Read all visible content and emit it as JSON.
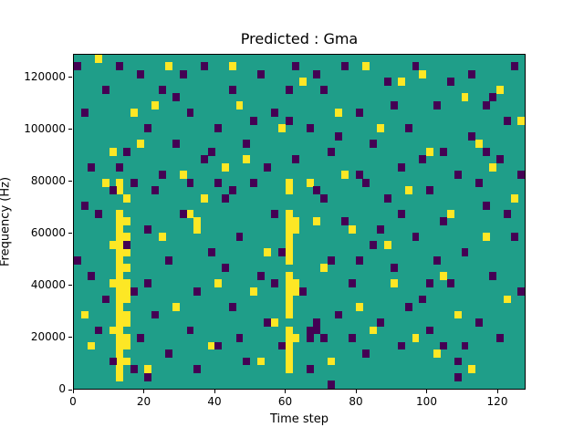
{
  "title": "Predicted : Gma",
  "chart_data": {
    "type": "heatmap",
    "title": "Predicted : Gma",
    "xlabel": "Time step",
    "ylabel": "Frequency (Hz)",
    "xlim": [
      0,
      128
    ],
    "ylim": [
      0,
      129000
    ],
    "x_ticks": [
      0,
      20,
      40,
      60,
      80,
      100,
      120
    ],
    "y_ticks": [
      0,
      20000,
      40000,
      60000,
      80000,
      100000,
      120000
    ],
    "grid": false,
    "legend": "none",
    "colors": {
      "background": "#1f9e89",
      "high": "#fde725",
      "low": "#440154"
    },
    "grid_dims": {
      "cols": 64,
      "rows": 43
    },
    "cell_size": {
      "time": 2,
      "freq": 3000
    },
    "cells": {
      "yellow": [
        [
          6,
          1
        ],
        [
          6,
          2
        ],
        [
          6,
          3
        ],
        [
          6,
          4
        ],
        [
          6,
          5
        ],
        [
          6,
          6
        ],
        [
          6,
          7
        ],
        [
          6,
          8
        ],
        [
          6,
          9
        ],
        [
          6,
          10
        ],
        [
          6,
          11
        ],
        [
          6,
          12
        ],
        [
          6,
          13
        ],
        [
          6,
          14
        ],
        [
          6,
          15
        ],
        [
          6,
          16
        ],
        [
          6,
          17
        ],
        [
          6,
          18
        ],
        [
          6,
          19
        ],
        [
          6,
          20
        ],
        [
          6,
          21
        ],
        [
          6,
          22
        ],
        [
          6,
          25
        ],
        [
          6,
          26
        ],
        [
          7,
          3
        ],
        [
          7,
          5
        ],
        [
          7,
          6
        ],
        [
          7,
          8
        ],
        [
          7,
          9
        ],
        [
          7,
          11
        ],
        [
          7,
          12
        ],
        [
          7,
          13
        ],
        [
          7,
          15
        ],
        [
          7,
          17
        ],
        [
          7,
          19
        ],
        [
          7,
          21
        ],
        [
          7,
          24
        ],
        [
          5,
          7
        ],
        [
          5,
          13
        ],
        [
          5,
          18
        ],
        [
          30,
          2
        ],
        [
          30,
          3
        ],
        [
          30,
          4
        ],
        [
          30,
          5
        ],
        [
          30,
          6
        ],
        [
          30,
          7
        ],
        [
          30,
          9
        ],
        [
          30,
          10
        ],
        [
          30,
          11
        ],
        [
          30,
          12
        ],
        [
          30,
          13
        ],
        [
          30,
          14
        ],
        [
          30,
          16
        ],
        [
          30,
          17
        ],
        [
          30,
          18
        ],
        [
          30,
          19
        ],
        [
          30,
          20
        ],
        [
          30,
          21
        ],
        [
          30,
          22
        ],
        [
          30,
          25
        ],
        [
          30,
          26
        ],
        [
          31,
          6
        ],
        [
          31,
          12
        ],
        [
          31,
          13
        ],
        [
          31,
          20
        ],
        [
          31,
          21
        ],
        [
          1,
          9
        ],
        [
          2,
          5
        ],
        [
          3,
          42
        ],
        [
          4,
          26
        ],
        [
          5,
          30
        ],
        [
          8,
          35
        ],
        [
          9,
          31
        ],
        [
          10,
          2
        ],
        [
          11,
          36
        ],
        [
          12,
          19
        ],
        [
          13,
          41
        ],
        [
          14,
          10
        ],
        [
          15,
          27
        ],
        [
          16,
          22
        ],
        [
          17,
          20
        ],
        [
          17,
          21
        ],
        [
          18,
          24
        ],
        [
          19,
          5
        ],
        [
          20,
          13
        ],
        [
          21,
          28
        ],
        [
          22,
          41
        ],
        [
          23,
          36
        ],
        [
          24,
          29
        ],
        [
          25,
          12
        ],
        [
          26,
          3
        ],
        [
          27,
          17
        ],
        [
          28,
          8
        ],
        [
          29,
          33
        ],
        [
          32,
          39
        ],
        [
          33,
          26
        ],
        [
          34,
          21
        ],
        [
          35,
          15
        ],
        [
          36,
          3
        ],
        [
          37,
          35
        ],
        [
          38,
          27
        ],
        [
          39,
          20
        ],
        [
          40,
          10
        ],
        [
          41,
          41
        ],
        [
          42,
          7
        ],
        [
          43,
          33
        ],
        [
          44,
          18
        ],
        [
          45,
          13
        ],
        [
          46,
          39
        ],
        [
          47,
          25
        ],
        [
          48,
          6
        ],
        [
          49,
          40
        ],
        [
          50,
          30
        ],
        [
          51,
          4
        ],
        [
          52,
          14
        ],
        [
          53,
          22
        ],
        [
          54,
          9
        ],
        [
          55,
          37
        ],
        [
          56,
          2
        ],
        [
          57,
          31
        ],
        [
          58,
          19
        ],
        [
          59,
          28
        ],
        [
          60,
          38
        ],
        [
          61,
          11
        ],
        [
          62,
          24
        ],
        [
          63,
          34
        ]
      ],
      "purple": [
        [
          0,
          16
        ],
        [
          0,
          41
        ],
        [
          1,
          23
        ],
        [
          1,
          35
        ],
        [
          2,
          14
        ],
        [
          2,
          28
        ],
        [
          3,
          7
        ],
        [
          3,
          22
        ],
        [
          4,
          11
        ],
        [
          4,
          38
        ],
        [
          5,
          3
        ],
        [
          5,
          25
        ],
        [
          6,
          28
        ],
        [
          6,
          41
        ],
        [
          7,
          18
        ],
        [
          7,
          30
        ],
        [
          8,
          2
        ],
        [
          8,
          12
        ],
        [
          8,
          26
        ],
        [
          9,
          6
        ],
        [
          9,
          40
        ],
        [
          10,
          1
        ],
        [
          10,
          13
        ],
        [
          10,
          20
        ],
        [
          10,
          33
        ],
        [
          11,
          9
        ],
        [
          11,
          25
        ],
        [
          12,
          27
        ],
        [
          12,
          38
        ],
        [
          13,
          4
        ],
        [
          13,
          16
        ],
        [
          14,
          31
        ],
        [
          14,
          37
        ],
        [
          15,
          22
        ],
        [
          15,
          40
        ],
        [
          16,
          7
        ],
        [
          16,
          26
        ],
        [
          16,
          35
        ],
        [
          17,
          2
        ],
        [
          17,
          12
        ],
        [
          18,
          29
        ],
        [
          18,
          41
        ],
        [
          19,
          17
        ],
        [
          19,
          30
        ],
        [
          20,
          5
        ],
        [
          20,
          26
        ],
        [
          20,
          33
        ],
        [
          21,
          15
        ],
        [
          21,
          24
        ],
        [
          22,
          10
        ],
        [
          22,
          25
        ],
        [
          22,
          38
        ],
        [
          23,
          6
        ],
        [
          23,
          19
        ],
        [
          24,
          3
        ],
        [
          24,
          31
        ],
        [
          25,
          26
        ],
        [
          25,
          34
        ],
        [
          26,
          14
        ],
        [
          26,
          40
        ],
        [
          27,
          8
        ],
        [
          27,
          28
        ],
        [
          28,
          13
        ],
        [
          28,
          22
        ],
        [
          28,
          35
        ],
        [
          29,
          5
        ],
        [
          29,
          17
        ],
        [
          30,
          34
        ],
        [
          30,
          38
        ],
        [
          31,
          29
        ],
        [
          31,
          41
        ],
        [
          32,
          12
        ],
        [
          33,
          2
        ],
        [
          33,
          6
        ],
        [
          33,
          7
        ],
        [
          33,
          33
        ],
        [
          34,
          7
        ],
        [
          34,
          8
        ],
        [
          34,
          25
        ],
        [
          34,
          40
        ],
        [
          35,
          6
        ],
        [
          35,
          24
        ],
        [
          35,
          38
        ],
        [
          36,
          0
        ],
        [
          36,
          16
        ],
        [
          36,
          30
        ],
        [
          37,
          9
        ],
        [
          37,
          32
        ],
        [
          38,
          21
        ],
        [
          38,
          41
        ],
        [
          39,
          6
        ],
        [
          39,
          13
        ],
        [
          40,
          16
        ],
        [
          40,
          27
        ],
        [
          40,
          35
        ],
        [
          41,
          4
        ],
        [
          41,
          26
        ],
        [
          42,
          18
        ],
        [
          42,
          31
        ],
        [
          43,
          8
        ],
        [
          43,
          20
        ],
        [
          44,
          24
        ],
        [
          44,
          39
        ],
        [
          45,
          15
        ],
        [
          45,
          36
        ],
        [
          46,
          5
        ],
        [
          46,
          22
        ],
        [
          46,
          28
        ],
        [
          47,
          10
        ],
        [
          47,
          33
        ],
        [
          48,
          19
        ],
        [
          48,
          41
        ],
        [
          49,
          11
        ],
        [
          49,
          29
        ],
        [
          50,
          7
        ],
        [
          50,
          13
        ],
        [
          50,
          25
        ],
        [
          51,
          16
        ],
        [
          51,
          36
        ],
        [
          52,
          5
        ],
        [
          52,
          21
        ],
        [
          52,
          30
        ],
        [
          53,
          13
        ],
        [
          53,
          39
        ],
        [
          54,
          1
        ],
        [
          54,
          3
        ],
        [
          54,
          27
        ],
        [
          55,
          5
        ],
        [
          55,
          17
        ],
        [
          56,
          32
        ],
        [
          56,
          40
        ],
        [
          57,
          8
        ],
        [
          57,
          26
        ],
        [
          58,
          23
        ],
        [
          58,
          30
        ],
        [
          58,
          36
        ],
        [
          59,
          14
        ],
        [
          59,
          37
        ],
        [
          60,
          6
        ],
        [
          60,
          29
        ],
        [
          61,
          22
        ],
        [
          61,
          34
        ],
        [
          62,
          19
        ],
        [
          62,
          41
        ],
        [
          63,
          12
        ],
        [
          63,
          27
        ]
      ]
    }
  }
}
